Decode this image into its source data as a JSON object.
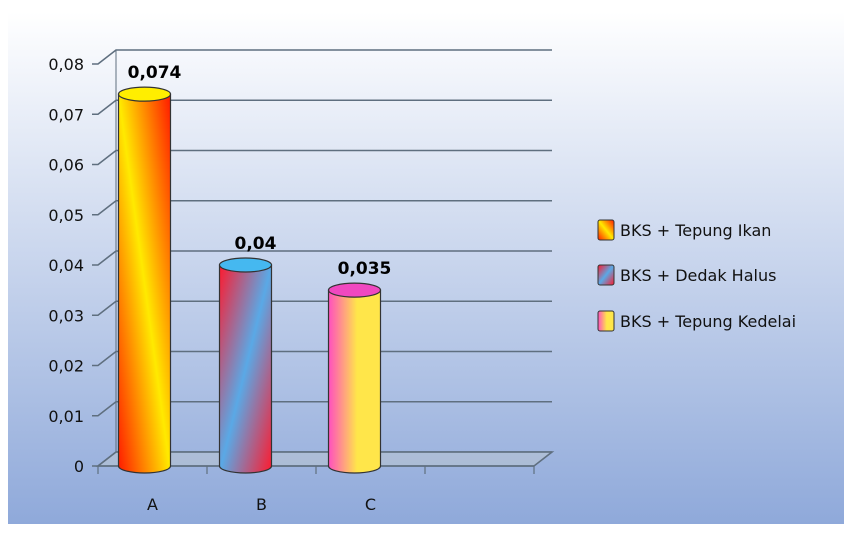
{
  "chart_data": {
    "type": "bar",
    "categories": [
      "A",
      "B",
      "C"
    ],
    "values": [
      0.074,
      0.04,
      0.035
    ],
    "data_labels": [
      "0,074",
      "0,04",
      "0,035"
    ],
    "ylim": [
      0,
      0.08
    ],
    "yticks": [
      "0",
      "0,01",
      "0,02",
      "0,03",
      "0,04",
      "0,05",
      "0,06",
      "0,07",
      "0,08"
    ],
    "grid": true,
    "legend_position": "right",
    "legend": [
      "BKS + Tepung Ikan",
      "BKS + Dedak Halus",
      "BKS + Tepung Kedelai"
    ],
    "colors": {
      "background_top": "#ffffff",
      "background_bottom": "#8fa9da",
      "bar_a": [
        "#ff1a00",
        "#ffea00"
      ],
      "bar_b": [
        "#ff1a2e",
        "#5aa9e6"
      ],
      "bar_c": [
        "#ff4fbf",
        "#ffe64a"
      ],
      "cap_a": "#ffee00",
      "cap_b": "#45b8f0",
      "cap_c": "#f048c0",
      "grid": "#5f6f7f"
    }
  }
}
